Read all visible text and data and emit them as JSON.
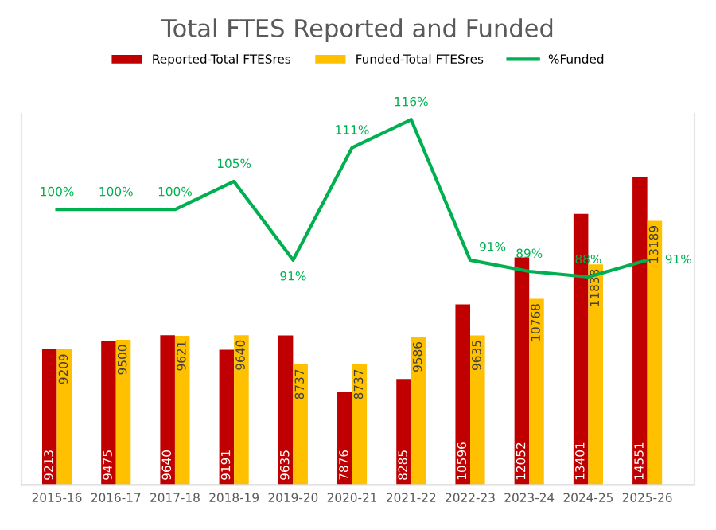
{
  "chart_data": {
    "type": "bar",
    "title": "Total FTES Reported and Funded",
    "categories": [
      "2015-16",
      "2016-17",
      "2017-18",
      "2018-19",
      "2019-20",
      "2020-21",
      "2021-22",
      "2022-23",
      "2023-24",
      "2024-25",
      "2025-26"
    ],
    "series": [
      {
        "name": "Reported-Total FTESres",
        "color": "#c00000",
        "values": [
          9213,
          9475,
          9640,
          9191,
          9635,
          7876,
          8285,
          10596,
          12052,
          13401,
          14551
        ]
      },
      {
        "name": "Funded-Total FTESres",
        "color": "#ffc000",
        "values": [
          9209,
          9500,
          9621,
          9640,
          8737,
          8737,
          9586,
          9635,
          10768,
          11838,
          13189
        ]
      },
      {
        "name": "%Funded",
        "type": "line",
        "axis": "y2",
        "color": "#00b050",
        "values": [
          100,
          100,
          100,
          105,
          91,
          111,
          116,
          91,
          89,
          88,
          91
        ],
        "value_labels": [
          "100%",
          "100%",
          "100%",
          "105%",
          "91%",
          "111%",
          "116%",
          "91%",
          "89%",
          "88%",
          "91%"
        ]
      }
    ],
    "ylim": [
      5000,
      16500
    ],
    "y2lim": [
      51,
      117
    ],
    "tick_labels": "x",
    "data_labels": true,
    "legend": "top",
    "grid": false
  }
}
